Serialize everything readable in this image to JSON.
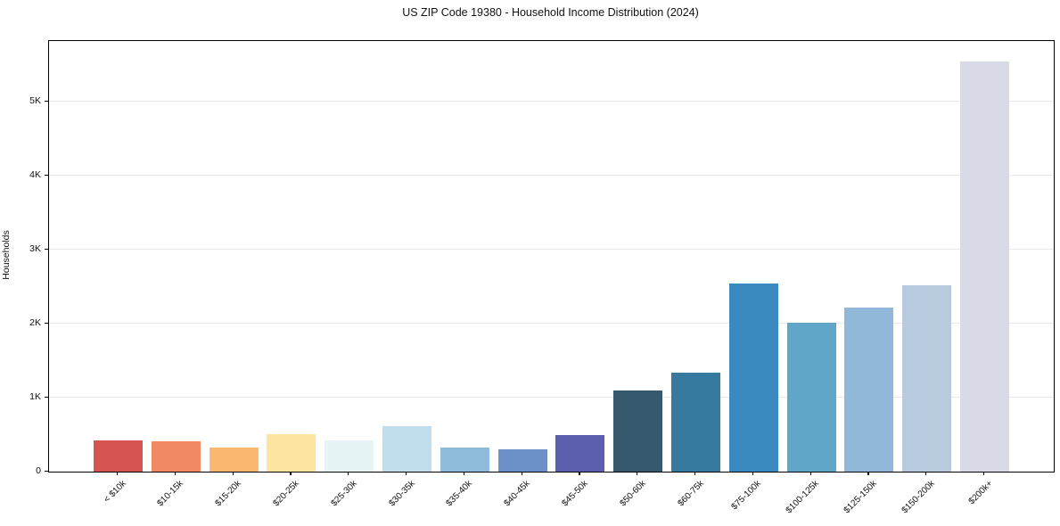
{
  "title": "US ZIP Code 19380 - Household Income Distribution (2024)",
  "chart_data": {
    "type": "bar",
    "title": "US ZIP Code 19380 - Household Income Distribution (2024)",
    "xlabel": "",
    "ylabel": "Households",
    "categories": [
      "< $10k",
      "$10-15k",
      "$15-20k",
      "$20-25k",
      "$25-30k",
      "$30-35k",
      "$35-40k",
      "$40-45k",
      "$45-50k",
      "$50-60k",
      "$60-75k",
      "$75-100k",
      "$100-125k",
      "$125-150k",
      "$150-200k",
      "$200k+"
    ],
    "values": [
      420,
      415,
      320,
      510,
      420,
      610,
      330,
      300,
      500,
      1100,
      1340,
      2540,
      2010,
      2220,
      2520,
      5540
    ],
    "bar_colors": [
      "#d5544f",
      "#f18a64",
      "#fbb871",
      "#fde4a1",
      "#e6f4f6",
      "#bfdfee",
      "#90bcdc",
      "#6b91c8",
      "#5b5fad",
      "#37596e",
      "#377a9f",
      "#3a8abf",
      "#60a6c9",
      "#91b7d9",
      "#b8cade",
      "#d8dae8"
    ],
    "ylim": [
      0,
      5820
    ],
    "yticks": [
      {
        "value": 0,
        "label": "0"
      },
      {
        "value": 1000,
        "label": "1K"
      },
      {
        "value": 2000,
        "label": "2K"
      },
      {
        "value": 3000,
        "label": "3K"
      },
      {
        "value": 4000,
        "label": "4K"
      },
      {
        "value": 5000,
        "label": "5K"
      }
    ],
    "grid": "horizontal",
    "legend": "none",
    "background_color": "#ffffff",
    "grid_color": "#e9e9e9",
    "axis_color": "#000000",
    "text_color": "#111111"
  }
}
